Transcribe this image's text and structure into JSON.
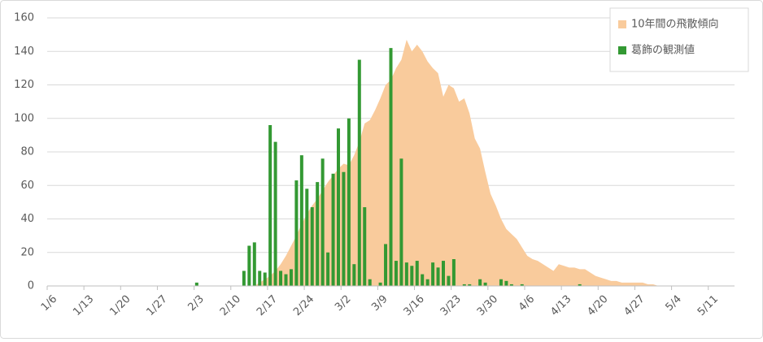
{
  "chart_data": {
    "type": "bar-area",
    "categories": [
      "1/6",
      null,
      null,
      null,
      null,
      null,
      null,
      "1/13",
      null,
      null,
      null,
      null,
      null,
      null,
      "1/20",
      null,
      null,
      null,
      null,
      null,
      null,
      "1/27",
      null,
      null,
      null,
      null,
      null,
      null,
      "2/3",
      null,
      null,
      null,
      null,
      null,
      null,
      "2/10",
      null,
      null,
      null,
      null,
      null,
      null,
      "2/17",
      null,
      null,
      null,
      null,
      null,
      null,
      "2/24",
      null,
      null,
      null,
      null,
      null,
      null,
      "3/2",
      null,
      null,
      null,
      null,
      null,
      null,
      "3/9",
      null,
      null,
      null,
      null,
      null,
      null,
      "3/16",
      null,
      null,
      null,
      null,
      null,
      null,
      "3/23",
      null,
      null,
      null,
      null,
      null,
      null,
      "3/30",
      null,
      null,
      null,
      null,
      null,
      null,
      "4/6",
      null,
      null,
      null,
      null,
      null,
      null,
      "4/13",
      null,
      null,
      null,
      null,
      null,
      null,
      "4/20",
      null,
      null,
      null,
      null,
      null,
      null,
      "4/27",
      null,
      null,
      null,
      null,
      null,
      null,
      "5/4",
      null,
      null,
      null,
      null,
      null,
      null,
      "5/11",
      null,
      null,
      null,
      null
    ],
    "series": [
      {
        "name": "10年間の飛散傾向",
        "kind": "area",
        "color": "#f9cb9c",
        "values": [
          0,
          0,
          0,
          0,
          0,
          0,
          0,
          0,
          0,
          0,
          0,
          0,
          0,
          0,
          0,
          0,
          0,
          0,
          0,
          0,
          0,
          0,
          0,
          0,
          0,
          0,
          0,
          0,
          0,
          0,
          0,
          0,
          0,
          0,
          0,
          0,
          0,
          0,
          0,
          0,
          2,
          4,
          6,
          9,
          13,
          18,
          24,
          30,
          37,
          43,
          48,
          52,
          57,
          62,
          66,
          70,
          73,
          72,
          78,
          86,
          97,
          99,
          105,
          112,
          120,
          123,
          130,
          135,
          147,
          140,
          144,
          140,
          134,
          130,
          127,
          113,
          120,
          118,
          110,
          112,
          103,
          88,
          82,
          68,
          55,
          48,
          40,
          34,
          31,
          28,
          23,
          18,
          16,
          15,
          13,
          11,
          9,
          13,
          12,
          11,
          11,
          10,
          10,
          8,
          6,
          5,
          4,
          3,
          3,
          2,
          2,
          2,
          2,
          2,
          1,
          1,
          0,
          0,
          0,
          0,
          0,
          0,
          0,
          0,
          0,
          0,
          0,
          0,
          0,
          0,
          0
        ]
      },
      {
        "name": "葛飾の観測値",
        "kind": "bar",
        "color": "#339933",
        "values": [
          0,
          0,
          0,
          0,
          0,
          0,
          0,
          0,
          0,
          0,
          0,
          0,
          0,
          0,
          0,
          0,
          0,
          0,
          0,
          0,
          0,
          0,
          0,
          0,
          0,
          0,
          0,
          0,
          2,
          0,
          0,
          0,
          0,
          0,
          0,
          0,
          0,
          9,
          24,
          26,
          9,
          8,
          96,
          86,
          9,
          7,
          10,
          63,
          78,
          58,
          47,
          62,
          76,
          20,
          67,
          94,
          68,
          100,
          13,
          135,
          47,
          4,
          0,
          2,
          25,
          142,
          15,
          76,
          14,
          12,
          15,
          7,
          4,
          14,
          11,
          15,
          6,
          16,
          0,
          1,
          1,
          0,
          4,
          2,
          0,
          0,
          4,
          3,
          1,
          0,
          1,
          0,
          0,
          0,
          0,
          0,
          0,
          0,
          0,
          0,
          0,
          1,
          0,
          0,
          0,
          0,
          0,
          0,
          0,
          0,
          0,
          0,
          0,
          0,
          0,
          0,
          0,
          0,
          0,
          0,
          0,
          0,
          0,
          0,
          0,
          0,
          0,
          0,
          0,
          0,
          0
        ]
      }
    ],
    "ylim": [
      0,
      160
    ],
    "yticks": [
      0,
      20,
      40,
      60,
      80,
      100,
      120,
      140,
      160
    ],
    "grid": true,
    "legend": "top-right"
  }
}
